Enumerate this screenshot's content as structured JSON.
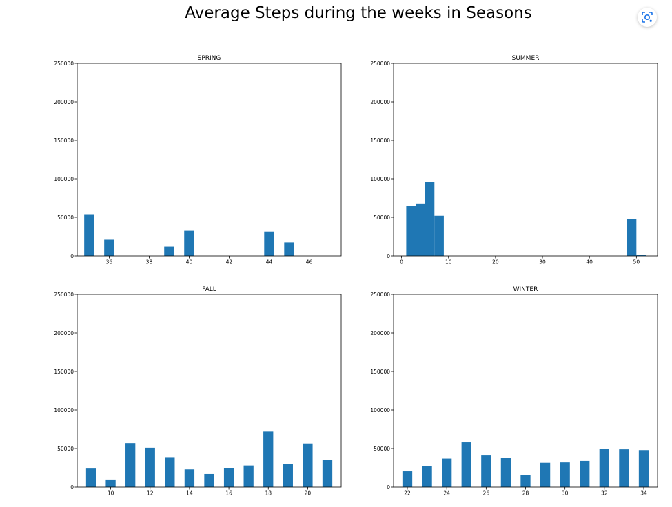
{
  "figure": {
    "title": "Average Steps during the weeks in Seasons"
  },
  "toolbar": {
    "lens_icon": "google-lens-icon"
  },
  "colors": {
    "bar": "#1f77b4",
    "axis": "#000000",
    "lens_accent": "#1a73e8"
  },
  "chart_data": [
    {
      "type": "bar",
      "title": "SPRING",
      "xlim": [
        34.4,
        47.6
      ],
      "ylim": [
        0,
        250000
      ],
      "bar_width": 0.5,
      "x": [
        35,
        36,
        39,
        40,
        44,
        45
      ],
      "values": [
        54000,
        21000,
        12000,
        32500,
        31500,
        17500
      ],
      "xticks": [
        36,
        38,
        40,
        42,
        44,
        46
      ],
      "yticks": [
        0,
        50000,
        100000,
        150000,
        200000,
        250000
      ]
    },
    {
      "type": "bar",
      "title": "SUMMER",
      "xlim": [
        -1.7,
        54.5
      ],
      "ylim": [
        0,
        250000
      ],
      "bar_width": 2,
      "x": [
        2,
        4,
        6,
        8,
        49,
        51
      ],
      "values": [
        65000,
        68000,
        96000,
        52000,
        47500,
        1500
      ],
      "xticks": [
        0,
        10,
        20,
        30,
        40,
        50
      ],
      "yticks": [
        0,
        50000,
        100000,
        150000,
        200000,
        250000
      ]
    },
    {
      "type": "bar",
      "title": "FALL",
      "xlim": [
        8.3,
        21.7
      ],
      "ylim": [
        0,
        250000
      ],
      "bar_width": 0.5,
      "x": [
        9,
        10,
        11,
        12,
        13,
        14,
        15,
        16,
        17,
        18,
        19,
        20,
        21
      ],
      "values": [
        24000,
        9000,
        57000,
        51000,
        38000,
        23000,
        17000,
        24500,
        28000,
        72000,
        30000,
        56500,
        35000
      ],
      "xticks": [
        10,
        12,
        14,
        16,
        18,
        20
      ],
      "yticks": [
        0,
        50000,
        100000,
        150000,
        200000,
        250000
      ]
    },
    {
      "type": "bar",
      "title": "WINTER",
      "xlim": [
        21.3,
        34.7
      ],
      "ylim": [
        0,
        250000
      ],
      "bar_width": 0.5,
      "x": [
        22,
        23,
        24,
        25,
        26,
        27,
        28,
        29,
        30,
        31,
        32,
        33,
        34
      ],
      "values": [
        20500,
        27000,
        37000,
        58000,
        41000,
        37500,
        16000,
        31500,
        32000,
        34000,
        50000,
        49000,
        48000
      ],
      "xticks": [
        22,
        24,
        26,
        28,
        30,
        32,
        34
      ],
      "yticks": [
        0,
        50000,
        100000,
        150000,
        200000,
        250000
      ]
    }
  ]
}
